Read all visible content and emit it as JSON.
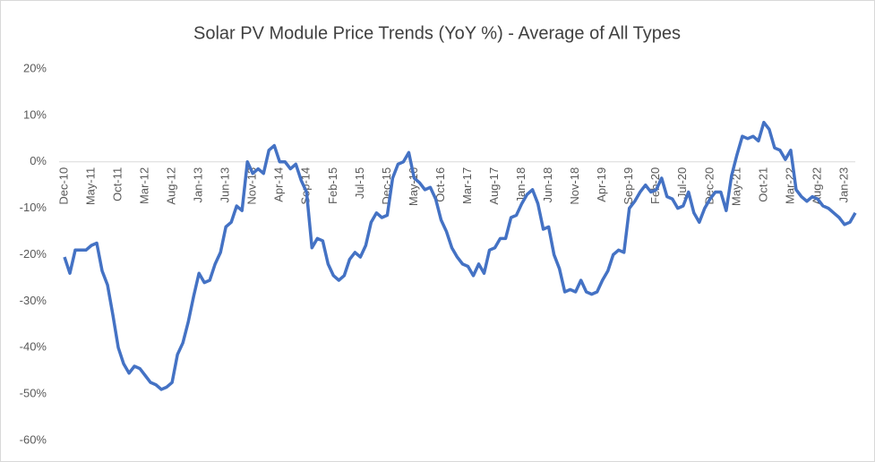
{
  "chart_data": {
    "type": "line",
    "title": "Solar PV Module Price Trends (YoY %) - Average of All Types",
    "categories": [
      "Dec-10",
      null,
      null,
      null,
      null,
      "May-11",
      null,
      null,
      null,
      null,
      "Oct-11",
      null,
      null,
      null,
      null,
      "Mar-12",
      null,
      null,
      null,
      null,
      "Aug-12",
      null,
      null,
      null,
      null,
      "Jan-13",
      null,
      null,
      null,
      null,
      "Jun-13",
      null,
      null,
      null,
      null,
      "Nov-13",
      null,
      null,
      null,
      null,
      "Apr-14",
      null,
      null,
      null,
      null,
      "Sep-14",
      null,
      null,
      null,
      null,
      "Feb-15",
      null,
      null,
      null,
      null,
      "Jul-15",
      null,
      null,
      null,
      null,
      "Dec-15",
      null,
      null,
      null,
      null,
      "May-16",
      null,
      null,
      null,
      null,
      "Oct-16",
      null,
      null,
      null,
      null,
      "Mar-17",
      null,
      null,
      null,
      null,
      "Aug-17",
      null,
      null,
      null,
      null,
      "Jan-18",
      null,
      null,
      null,
      null,
      "Jun-18",
      null,
      null,
      null,
      null,
      "Nov-18",
      null,
      null,
      null,
      null,
      "Apr-19",
      null,
      null,
      null,
      null,
      "Sep-19",
      null,
      null,
      null,
      null,
      "Feb-20",
      null,
      null,
      null,
      null,
      "Jul-20",
      null,
      null,
      null,
      null,
      "Dec-20",
      null,
      null,
      null,
      null,
      "May-21",
      null,
      null,
      null,
      null,
      "Oct-21",
      null,
      null,
      null,
      null,
      "Mar-22",
      null,
      null,
      null,
      null,
      "Aug-22",
      null,
      null,
      null,
      null,
      "Jan-23",
      null,
      null
    ],
    "series": [
      {
        "color": "#4472c4",
        "values": [
          -20.5,
          -24,
          -19,
          -19,
          -19,
          -18,
          -17.5,
          -23.5,
          -26.5,
          -33,
          -40,
          -43.5,
          -45.5,
          -44,
          -44.5,
          -46,
          -47.5,
          -48,
          -49,
          -48.5,
          -47.5,
          -41.5,
          -39,
          -34.5,
          -29,
          -24,
          -26,
          -25.5,
          -22,
          -19.5,
          -14,
          -13,
          -9.5,
          -10.5,
          0,
          -2.5,
          -1.5,
          -2.5,
          2.5,
          3.5,
          0,
          0,
          -1.5,
          -0.5,
          -4,
          -6.5,
          -18.5,
          -16.5,
          -17,
          -22,
          -24.5,
          -25.5,
          -24.5,
          -21,
          -19.5,
          -20.5,
          -18,
          -13,
          -11,
          -12,
          -11.5,
          -3.5,
          -0.5,
          0,
          2,
          -3.5,
          -4.5,
          -6,
          -5.5,
          -8,
          -12.5,
          -15,
          -18.5,
          -20.5,
          -22,
          -22.5,
          -24.5,
          -22,
          -24,
          -19,
          -18.5,
          -16.5,
          -16.5,
          -12,
          -11.5,
          -9,
          -7,
          -6,
          -9,
          -14.5,
          -14,
          -20,
          -23,
          -28,
          -27.5,
          -28,
          -25.5,
          -28,
          -28.5,
          -28,
          -25.5,
          -23.5,
          -20,
          -19,
          -19.5,
          -10,
          -8.5,
          -6.5,
          -5,
          -6.5,
          -6,
          -3.5,
          -7.5,
          -8,
          -10,
          -9.5,
          -6.5,
          -11,
          -13,
          -10,
          -8,
          -6.5,
          -6.5,
          -10.5,
          -3,
          1.5,
          5.5,
          5,
          5.5,
          4.5,
          8.5,
          7,
          3,
          2.5,
          0.5,
          2.5,
          -6,
          -7.5,
          -8.5,
          -7.5,
          -8,
          -9.5,
          -10,
          -11,
          -12,
          -13.5,
          -13,
          -11
        ]
      }
    ],
    "ylim": [
      -60,
      20
    ],
    "yticks": [
      {
        "value": -60,
        "label": "-60%"
      },
      {
        "value": -50,
        "label": "-50%"
      },
      {
        "value": -40,
        "label": "-40%"
      },
      {
        "value": -30,
        "label": "-30%"
      },
      {
        "value": -20,
        "label": "-20%"
      },
      {
        "value": -10,
        "label": "-10%"
      },
      {
        "value": 0,
        "label": "0%"
      },
      {
        "value": 10,
        "label": "10%"
      },
      {
        "value": 20,
        "label": "20%"
      }
    ],
    "grid": false
  }
}
